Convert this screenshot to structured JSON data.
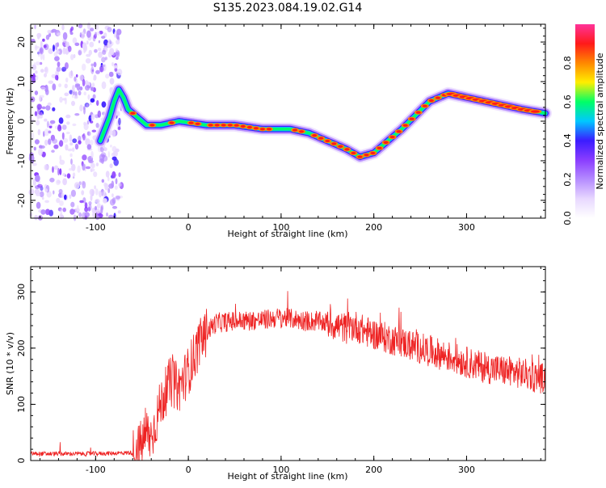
{
  "title": "S135.2023.084.19.02.G14",
  "colors": {
    "snr_line": "#ee2222",
    "colormap": [
      "#ffffff",
      "#e8d8ff",
      "#b58cff",
      "#8a3dff",
      "#3b1cff",
      "#00c8ff",
      "#00ff66",
      "#ffee00",
      "#ff8800",
      "#ff1a1a",
      "#ff3399"
    ]
  },
  "chart_data": [
    {
      "type": "heatmap",
      "name": "spectrogram",
      "xlabel": "Height of straight line (km)",
      "ylabel": "Frequency (Hz)",
      "xlim": [
        -170,
        385
      ],
      "ylim": [
        -24.5,
        24.5
      ],
      "x_ticks": [
        -100,
        0,
        100,
        200,
        300
      ],
      "y_ticks": [
        -20,
        -10,
        0,
        10,
        20
      ],
      "grid": false,
      "noise_region_x": [
        -170,
        -72
      ],
      "ridge": {
        "x": [
          -95,
          -90,
          -85,
          -80,
          -75,
          -70,
          -65,
          -55,
          -45,
          -30,
          -10,
          20,
          50,
          80,
          110,
          130,
          150,
          170,
          185,
          200,
          230,
          260,
          280,
          300,
          320,
          340,
          360,
          385
        ],
        "frequency": [
          -5,
          -2,
          1,
          5,
          8,
          6,
          3,
          1,
          -1,
          -1,
          0,
          -1,
          -1,
          -2,
          -2,
          -3,
          -5,
          -7,
          -9,
          -8,
          -2,
          5,
          7,
          6,
          5,
          4,
          3,
          2
        ]
      },
      "colorbar": {
        "label": "Normalized spectral amplitude",
        "range": [
          0.0,
          1.0
        ],
        "ticks": [
          "0.0",
          "0.2",
          "0.4",
          "0.6",
          "0.8"
        ]
      }
    },
    {
      "type": "line",
      "name": "snr",
      "xlabel": "Height of straight line (km)",
      "ylabel": "SNR (10 * v/v)",
      "xlim": [
        -170,
        385
      ],
      "ylim": [
        0,
        345
      ],
      "x_ticks": [
        -100,
        0,
        100,
        200,
        300
      ],
      "y_ticks": [
        0,
        100,
        200,
        300
      ],
      "grid": false,
      "series": [
        {
          "x": [
            -170,
            -140,
            -110,
            -80,
            -60,
            -50,
            -45,
            -40,
            -30,
            -20,
            -10,
            0,
            10,
            20,
            30,
            50,
            80,
            100,
            120,
            150,
            170,
            180,
            190,
            200,
            220,
            240,
            260,
            280,
            300,
            320,
            340,
            360,
            385
          ],
          "values": [
            12,
            12,
            12,
            13,
            14,
            30,
            50,
            40,
            100,
            140,
            130,
            160,
            200,
            230,
            245,
            248,
            250,
            255,
            250,
            245,
            235,
            240,
            230,
            225,
            215,
            205,
            195,
            185,
            175,
            165,
            160,
            155,
            145
          ]
        }
      ]
    }
  ]
}
